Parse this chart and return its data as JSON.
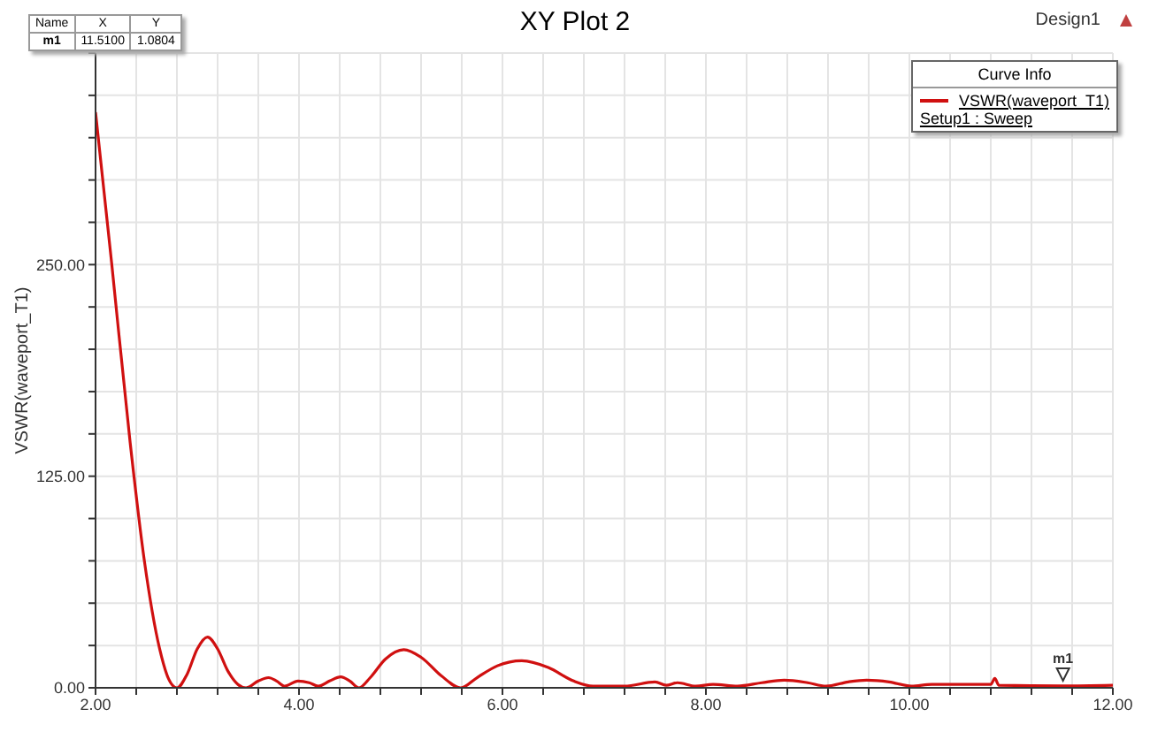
{
  "chart_data": {
    "type": "line",
    "title": "XY Plot 2",
    "ylabel": "VSWR(waveport_T1)",
    "legend_title": "Curve Info",
    "legend": "top right",
    "grid": true,
    "marker": "none",
    "line_style": "solid",
    "annotations": [
      "Design1",
      "Setup1 : Sweep",
      "Name",
      "X",
      "Y",
      "m1",
      "11.5100",
      "1.0804",
      {
        "text": "m1",
        "x": 11.51,
        "y": 1.0804
      }
    ],
    "xlim": [
      2,
      12
    ],
    "xticks": [
      {
        "value": 2,
        "label": "2.00"
      },
      {
        "value": 2.4,
        "label": null
      },
      {
        "value": 2.8,
        "label": null
      },
      {
        "value": 3.2,
        "label": null
      },
      {
        "value": 3.6,
        "label": null
      },
      {
        "value": 4,
        "label": "4.00"
      },
      {
        "value": 4.4,
        "label": null
      },
      {
        "value": 4.8,
        "label": null
      },
      {
        "value": 5.2,
        "label": null
      },
      {
        "value": 5.6,
        "label": null
      },
      {
        "value": 6,
        "label": "6.00"
      },
      {
        "value": 6.4,
        "label": null
      },
      {
        "value": 6.8,
        "label": null
      },
      {
        "value": 7.2,
        "label": null
      },
      {
        "value": 7.6,
        "label": null
      },
      {
        "value": 8,
        "label": "8.00"
      },
      {
        "value": 8.4,
        "label": null
      },
      {
        "value": 8.8,
        "label": null
      },
      {
        "value": 9.2,
        "label": null
      },
      {
        "value": 9.6,
        "label": null
      },
      {
        "value": 10,
        "label": "10.00"
      },
      {
        "value": 10.4,
        "label": null
      },
      {
        "value": 10.8,
        "label": null
      },
      {
        "value": 11.2,
        "label": null
      },
      {
        "value": 11.6,
        "label": null
      },
      {
        "value": 12,
        "label": "12.00"
      }
    ],
    "ylim": [
      0,
      375
    ],
    "yticks": [
      {
        "value": 0,
        "label": "0.00"
      },
      {
        "value": 25,
        "label": null
      },
      {
        "value": 50,
        "label": null
      },
      {
        "value": 75,
        "label": null
      },
      {
        "value": 100,
        "label": null
      },
      {
        "value": 125,
        "label": "125.00"
      },
      {
        "value": 150,
        "label": null
      },
      {
        "value": 175,
        "label": null
      },
      {
        "value": 200,
        "label": null
      },
      {
        "value": 225,
        "label": null
      },
      {
        "value": 250,
        "label": "250.00"
      },
      {
        "value": 275,
        "label": null
      },
      {
        "value": 300,
        "label": null
      },
      {
        "value": 325,
        "label": null
      },
      {
        "value": 350,
        "label": null
      },
      {
        "value": 375,
        "label": null
      }
    ],
    "series": [
      {
        "name": "VSWR(waveport_T1)",
        "color": "#d01010",
        "x": [
          2.0,
          2.16,
          2.34,
          2.48,
          2.63,
          2.72,
          2.8,
          2.9,
          3.0,
          3.1,
          3.2,
          3.3,
          3.4,
          3.48,
          3.6,
          3.7,
          3.78,
          3.86,
          3.99,
          4.1,
          4.19,
          4.3,
          4.41,
          4.5,
          4.59,
          4.7,
          4.85,
          5.03,
          5.2,
          5.4,
          5.59,
          5.75,
          5.95,
          6.19,
          6.45,
          6.7,
          6.89,
          7.2,
          7.5,
          7.61,
          7.72,
          7.9,
          8.07,
          8.31,
          8.55,
          8.77,
          9.0,
          9.18,
          9.4,
          9.58,
          9.8,
          10.02,
          10.22,
          10.8,
          10.84,
          10.88,
          11.51,
          12
        ],
        "values": [
          340,
          250,
          145,
          75,
          23,
          5,
          0,
          8,
          23,
          30,
          23,
          10,
          2,
          0,
          4,
          6,
          4,
          1,
          4,
          3,
          1,
          4,
          6.5,
          4,
          0,
          6,
          17,
          22.5,
          18,
          7,
          0,
          6,
          13,
          16,
          12,
          4,
          1,
          1,
          3.5,
          1.5,
          3,
          1,
          2,
          1,
          3,
          4.5,
          3,
          1,
          3.5,
          4.5,
          3.5,
          1,
          2,
          2,
          5.5,
          1.5,
          1.0804,
          1.5
        ]
      }
    ]
  }
}
